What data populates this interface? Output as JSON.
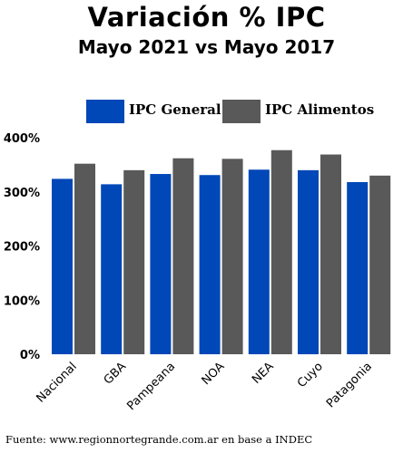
{
  "chart_data": {
    "type": "bar",
    "title": "Variación % IPC",
    "subtitle": "Mayo 2021 vs Mayo 2017",
    "categories": [
      "Nacional",
      "GBA",
      "Pampeana",
      "NOA",
      "NEA",
      "Cuyo",
      "Patagonia"
    ],
    "series": [
      {
        "name": "IPC General",
        "color": "#0047B8",
        "values": [
          324,
          314,
          333,
          331,
          341,
          340,
          318
        ]
      },
      {
        "name": "IPC Alimentos",
        "color": "#595959",
        "values": [
          352,
          340,
          362,
          361,
          377,
          369,
          330
        ]
      }
    ],
    "yticks": [
      "400%",
      "300%",
      "200%",
      "100%",
      "0%"
    ],
    "ylim": [
      0,
      400
    ],
    "grid": false,
    "legend": "top"
  },
  "source": "Fuente: www.regionnortegrande.com.ar en base a INDEC"
}
